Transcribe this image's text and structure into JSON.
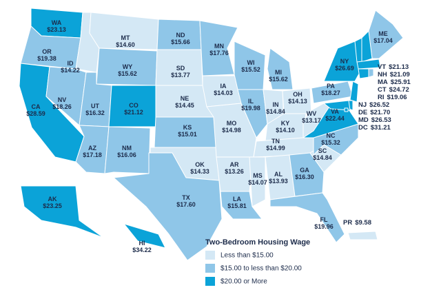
{
  "title": "Two-Bedroom Housing Wage",
  "legend": [
    {
      "label": "Less than $15.00",
      "color": "#d4e8f5"
    },
    {
      "label": "$15.00 to less than $20.00",
      "color": "#8fc6e8"
    },
    {
      "label": "$20.00 or More",
      "color": "#0ba3d8"
    }
  ],
  "states": [
    {
      "abbr": "WA",
      "wage": "$23.13",
      "color": "#0ba3d8"
    },
    {
      "abbr": "OR",
      "wage": "$19.38",
      "color": "#8fc6e8"
    },
    {
      "abbr": "CA",
      "wage": "$28.59",
      "color": "#0ba3d8"
    },
    {
      "abbr": "ID",
      "wage": "$14.22",
      "color": "#d4e8f5"
    },
    {
      "abbr": "NV",
      "wage": "$18.26",
      "color": "#8fc6e8"
    },
    {
      "abbr": "MT",
      "wage": "$14.60",
      "color": "#d4e8f5"
    },
    {
      "abbr": "WY",
      "wage": "$15.62",
      "color": "#8fc6e8"
    },
    {
      "abbr": "UT",
      "wage": "$16.32",
      "color": "#8fc6e8"
    },
    {
      "abbr": "AZ",
      "wage": "$17.18",
      "color": "#8fc6e8"
    },
    {
      "abbr": "CO",
      "wage": "$21.12",
      "color": "#0ba3d8"
    },
    {
      "abbr": "NM",
      "wage": "$16.06",
      "color": "#8fc6e8"
    },
    {
      "abbr": "ND",
      "wage": "$15.66",
      "color": "#8fc6e8"
    },
    {
      "abbr": "SD",
      "wage": "$13.77",
      "color": "#d4e8f5"
    },
    {
      "abbr": "NE",
      "wage": "$14.45",
      "color": "#d4e8f5"
    },
    {
      "abbr": "KS",
      "wage": "$15.01",
      "color": "#8fc6e8"
    },
    {
      "abbr": "OK",
      "wage": "$14.33",
      "color": "#d4e8f5"
    },
    {
      "abbr": "TX",
      "wage": "$17.60",
      "color": "#8fc6e8"
    },
    {
      "abbr": "MN",
      "wage": "$17.76",
      "color": "#8fc6e8"
    },
    {
      "abbr": "IA",
      "wage": "$14.03",
      "color": "#d4e8f5"
    },
    {
      "abbr": "MO",
      "wage": "$14.98",
      "color": "#d4e8f5"
    },
    {
      "abbr": "AR",
      "wage": "$13.26",
      "color": "#d4e8f5"
    },
    {
      "abbr": "LA",
      "wage": "$15.81",
      "color": "#8fc6e8"
    },
    {
      "abbr": "WI",
      "wage": "$15.52",
      "color": "#8fc6e8"
    },
    {
      "abbr": "IL",
      "wage": "$19.98",
      "color": "#8fc6e8"
    },
    {
      "abbr": "MS",
      "wage": "$14.07",
      "color": "#d4e8f5"
    },
    {
      "abbr": "MI",
      "wage": "$15.62",
      "color": "#8fc6e8"
    },
    {
      "abbr": "IN",
      "wage": "$14.84",
      "color": "#d4e8f5"
    },
    {
      "abbr": "OH",
      "wage": "$14.13",
      "color": "#d4e8f5"
    },
    {
      "abbr": "KY",
      "wage": "$14.10",
      "color": "#d4e8f5"
    },
    {
      "abbr": "TN",
      "wage": "$14.99",
      "color": "#d4e8f5"
    },
    {
      "abbr": "AL",
      "wage": "$13.93",
      "color": "#d4e8f5"
    },
    {
      "abbr": "GA",
      "wage": "$16.30",
      "color": "#8fc6e8"
    },
    {
      "abbr": "FL",
      "wage": "$19.96",
      "color": "#8fc6e8"
    },
    {
      "abbr": "SC",
      "wage": "$14.84",
      "color": "#d4e8f5"
    },
    {
      "abbr": "NC",
      "wage": "$15.32",
      "color": "#8fc6e8"
    },
    {
      "abbr": "VA",
      "wage": "$22.44",
      "color": "#0ba3d8"
    },
    {
      "abbr": "WV",
      "wage": "$13.17",
      "color": "#d4e8f5"
    },
    {
      "abbr": "PA",
      "wage": "$18.27",
      "color": "#8fc6e8"
    },
    {
      "abbr": "NY",
      "wage": "$26.69",
      "color": "#0ba3d8"
    },
    {
      "abbr": "ME",
      "wage": "$17.04",
      "color": "#8fc6e8"
    },
    {
      "abbr": "VT",
      "wage": "$21.13",
      "color": "#0ba3d8"
    },
    {
      "abbr": "NH",
      "wage": "$21.09",
      "color": "#0ba3d8"
    },
    {
      "abbr": "MA",
      "wage": "$25.91",
      "color": "#0ba3d8"
    },
    {
      "abbr": "CT",
      "wage": "$24.72",
      "color": "#0ba3d8"
    },
    {
      "abbr": "RI",
      "wage": "$19.06",
      "color": "#8fc6e8"
    },
    {
      "abbr": "NJ",
      "wage": "$26.52",
      "color": "#0ba3d8"
    },
    {
      "abbr": "DE",
      "wage": "$21.70",
      "color": "#0ba3d8"
    },
    {
      "abbr": "MD",
      "wage": "$26.53",
      "color": "#0ba3d8"
    },
    {
      "abbr": "DC",
      "wage": "$31.21",
      "color": "#0ba3d8"
    },
    {
      "abbr": "AK",
      "wage": "$23.25",
      "color": "#0ba3d8"
    },
    {
      "abbr": "HI",
      "wage": "$34.22",
      "color": "#0ba3d8"
    },
    {
      "abbr": "PR",
      "wage": "$9.58",
      "color": "#d4e8f5"
    }
  ]
}
